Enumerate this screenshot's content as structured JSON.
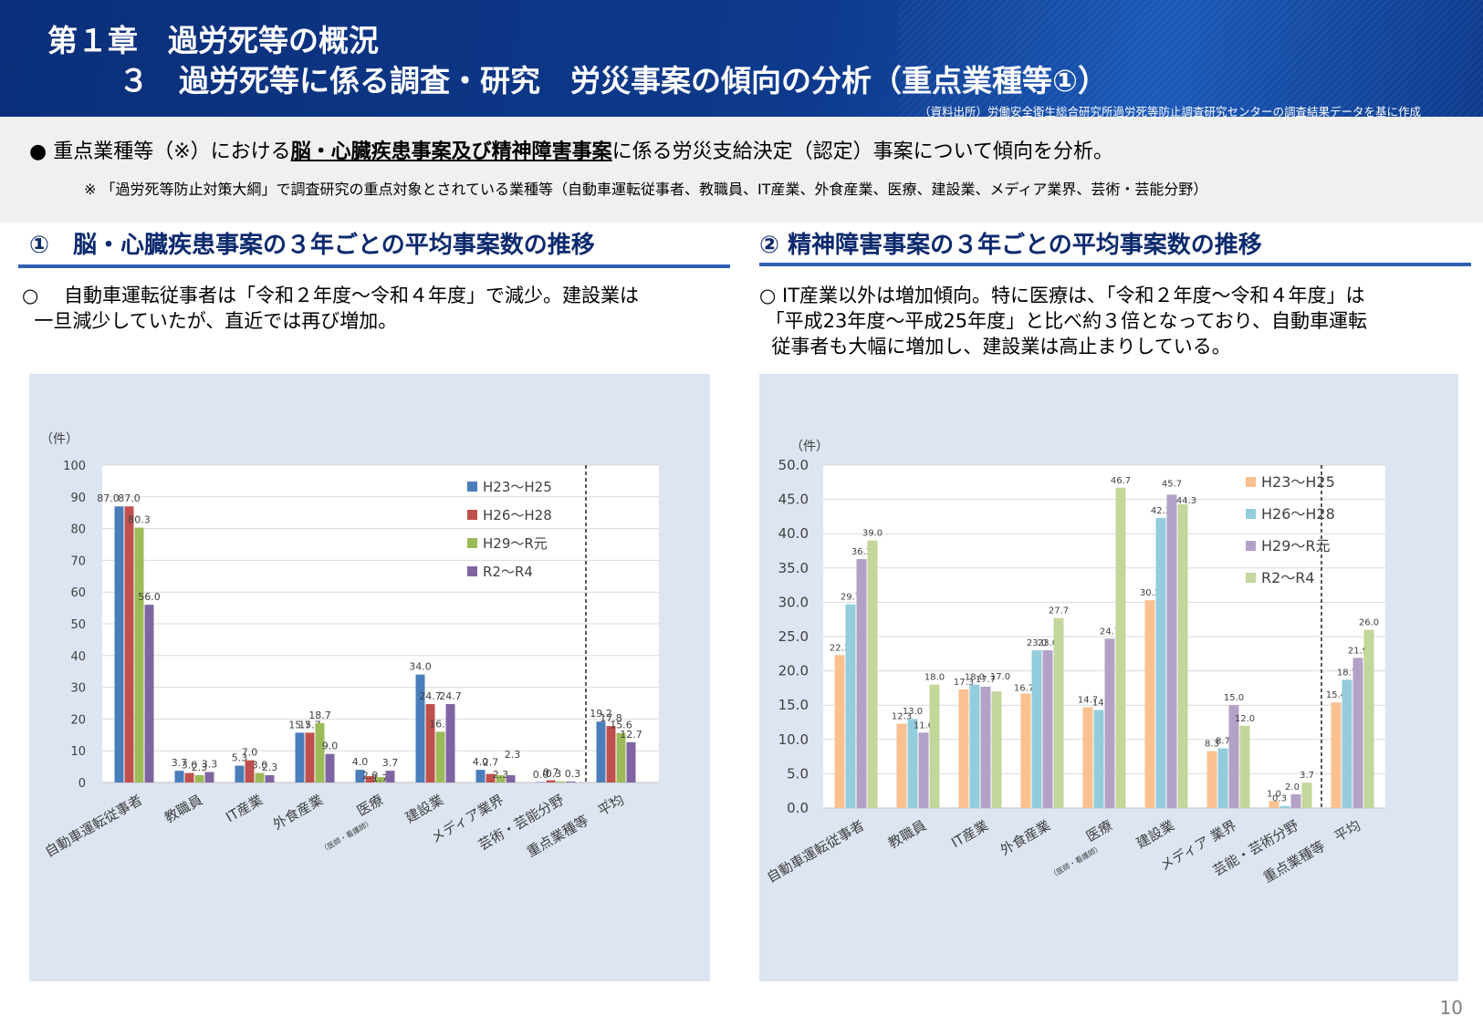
{
  "header": {
    "title_line1": "第１章　過労死等の概況",
    "title_line2": "３　過労死等に係る調査・研究　労災事案の傾向の分析（重点業種等①）",
    "source": "（資料出所）労働安全衛生総合研究所過労死等防止調査研究センターの調査結果データを基に作成"
  },
  "intro": {
    "bullet": "●",
    "text_before": "重点業種等（※）における",
    "text_emphasis": "脳・心臓疾患事案及び精神障害事案",
    "text_after": "に係る労災支給決定（認定）事案について傾向を分析。",
    "note": "※ 「過労死等防止対策大綱」で調査研究の重点対象とされている業種等（自動車運転従事者、教職員、IT産業、外食産業、医療、建設業、メディア業界、芸術・芸能分野）"
  },
  "left_section": {
    "title": "①　脳・心臓疾患事案の３年ごとの平均事案数の推移",
    "description": "○　 自動車運転従事者は「令和２年度～令和４年度」で減少。建設業は\n  一旦減少していたが、直近では再び増加。"
  },
  "right_section": {
    "title": "② 精神障害事案の３年ごとの平均事案数の推移",
    "description": "○ IT産業以外は増加傾向。特に医療は、「令和２年度～令和４年度」は\n 「平成23年度～平成25年度」と比べ約３倍となっており、自動車運転\n  従事者も大幅に増加し、建設業は高止まりしている。"
  },
  "page_number": "10",
  "chart_data": [
    {
      "type": "bar",
      "unit_label": "（件）",
      "ylim": [
        0,
        100
      ],
      "yticks": [
        "0",
        "10",
        "20",
        "30",
        "40",
        "50",
        "60",
        "70",
        "80",
        "90",
        "100"
      ],
      "categories": [
        "自動車運転従事者",
        "教職員",
        "IT産業",
        "外食産業",
        "医療",
        "建設業",
        "メディア業界",
        "芸術・芸能分野",
        "重点業種等　平均"
      ],
      "category_labels": [
        {
          "main": "自動車運転従事者"
        },
        {
          "main": "教職員"
        },
        {
          "main": "IT産業"
        },
        {
          "main": "外食産業"
        },
        {
          "main": "医療",
          "sub": "（医師・看護師）"
        },
        {
          "main": "建設業"
        },
        {
          "main": "メディア業界"
        },
        {
          "main": "芸術・芸能分野"
        },
        {
          "main": "重点業種等　平均",
          "dots": "…"
        }
      ],
      "series": [
        {
          "name": "H23～H25",
          "color": "#4a7ebb",
          "values": [
            87.0,
            3.7,
            5.3,
            15.7,
            4.0,
            34.0,
            4.0,
            0.0,
            19.2
          ],
          "labels": [
            "87.0",
            "3.7",
            "5.3",
            "15.7",
            "4.0",
            "34.0",
            "4.0",
            "0.0",
            "19.2"
          ]
        },
        {
          "name": "H26～H28",
          "color": "#c0504d",
          "values": [
            87.0,
            3.0,
            7.0,
            15.7,
            2.0,
            24.7,
            2.7,
            0.7,
            17.8
          ],
          "labels": [
            "87.0",
            "3.0",
            "7.0",
            "15.7",
            "2.0",
            "24.7",
            "2.7",
            "0.7",
            "17.8"
          ]
        },
        {
          "name": "H29～R元",
          "color": "#9bbb59",
          "values": [
            80.3,
            2.3,
            3.0,
            18.7,
            1.7,
            16.0,
            2.3,
            0.3,
            15.6
          ],
          "labels": [
            "80.3",
            "2.3",
            "3.0",
            "18.7",
            "1.7",
            "16.0",
            "2.3",
            "0.3",
            "15.6"
          ]
        },
        {
          "name": "R2～R4",
          "color": "#8064a2",
          "values": [
            56.0,
            3.3,
            2.3,
            9.0,
            3.7,
            24.7,
            2.3,
            0.3,
            12.7
          ],
          "labels": [
            "56.0",
            "3.3",
            "2.3",
            "9.0",
            "3.7",
            "24.7",
            "2.3",
            "0.3",
            "12.7"
          ]
        }
      ]
    },
    {
      "type": "bar",
      "unit_label": "（件）",
      "ylim": [
        0,
        50
      ],
      "yticks": [
        "0.0",
        "5.0",
        "10.0",
        "15.0",
        "20.0",
        "25.0",
        "30.0",
        "35.0",
        "40.0",
        "45.0",
        "50.0"
      ],
      "categories": [
        "自動車運転従事者",
        "教職員",
        "IT産業",
        "外食産業",
        "医療",
        "建設業",
        "メディア 業界",
        "芸能・芸術分野",
        "重点業種等　平均"
      ],
      "category_labels": [
        {
          "main": "自動車運転従事者"
        },
        {
          "main": "教職員"
        },
        {
          "main": "IT産業"
        },
        {
          "main": "外食産業"
        },
        {
          "main": "医療",
          "sub": "（医師・看護師）"
        },
        {
          "main": "建設業"
        },
        {
          "main": "メディア 業界"
        },
        {
          "main": "芸能・芸術分野"
        },
        {
          "main": "重点業種等　平均"
        }
      ],
      "series": [
        {
          "name": "H23～H25",
          "color": "#fac090",
          "values": [
            22.3,
            12.3,
            17.3,
            16.7,
            14.7,
            30.3,
            8.3,
            1.0,
            15.4
          ],
          "labels": [
            "22.3",
            "12.3",
            "17.3",
            "16.7",
            "14.7",
            "30.3",
            "8.3",
            "1.0",
            "15.4"
          ]
        },
        {
          "name": "H26～H28",
          "color": "#93cddd",
          "values": [
            29.7,
            13.0,
            18.0,
            23.0,
            14.3,
            42.3,
            8.7,
            0.3,
            18.7
          ],
          "labels": [
            "29.7",
            "13.0",
            "18.0",
            "23.0",
            "14.3",
            "42.3",
            "8.7",
            "0.3",
            "18.7"
          ]
        },
        {
          "name": "H29～R元",
          "color": "#b3a2c7",
          "values": [
            36.3,
            11.0,
            17.7,
            23.0,
            24.7,
            45.7,
            15.0,
            2.0,
            21.9
          ],
          "labels": [
            "36.3",
            "11.0",
            "17.7",
            "23.0",
            "24.7",
            "45.7",
            "15.0",
            "2.0",
            "21.9"
          ]
        },
        {
          "name": "R2～R4",
          "color": "#c3d69b",
          "values": [
            39.0,
            18.0,
            17.0,
            27.7,
            46.7,
            44.3,
            12.0,
            3.7,
            26.0
          ],
          "labels": [
            "39.0",
            "18.0",
            "17.0",
            "27.7",
            "46.7",
            "44.3",
            "12.0",
            "3.7",
            "26.0"
          ]
        }
      ]
    }
  ]
}
